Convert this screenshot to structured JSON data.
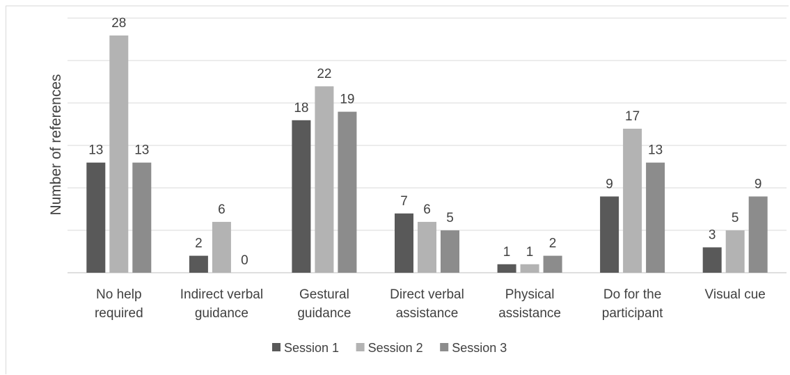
{
  "chart_data": {
    "type": "bar",
    "title": "",
    "xlabel": "",
    "ylabel": "Number of references",
    "ylim": [
      0,
      28
    ],
    "grid": true,
    "legend_position": "bottom",
    "categories": [
      [
        "No help",
        "required"
      ],
      [
        "Indirect verbal",
        "guidance"
      ],
      [
        "Gestural",
        "guidance"
      ],
      [
        "Direct verbal",
        "assistance"
      ],
      [
        "Physical",
        "assistance"
      ],
      [
        "Do for the",
        "participant"
      ],
      [
        "Visual cue"
      ]
    ],
    "series": [
      {
        "name": "Session 1",
        "color": "#595959",
        "values": [
          13,
          2,
          18,
          7,
          1,
          9,
          3
        ]
      },
      {
        "name": "Session 2",
        "color": "#b3b3b3",
        "values": [
          28,
          6,
          22,
          6,
          1,
          17,
          5
        ]
      },
      {
        "name": "Session 3",
        "color": "#8c8c8c",
        "values": [
          13,
          0,
          19,
          5,
          2,
          13,
          9
        ]
      }
    ]
  }
}
